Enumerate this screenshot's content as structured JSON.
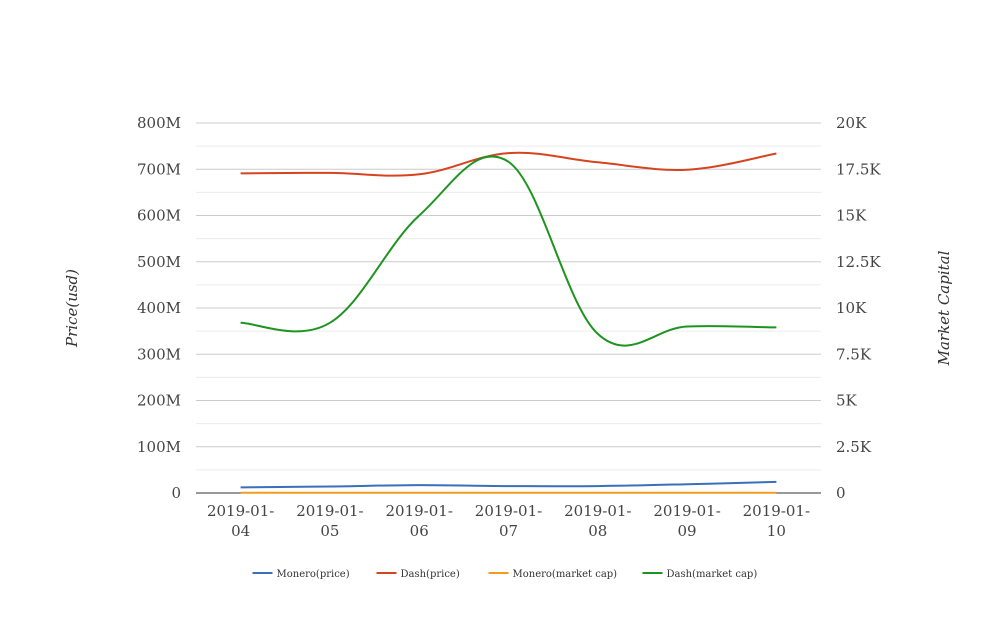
{
  "chart_data": {
    "type": "line",
    "title": "",
    "xlabel": "",
    "ylabel": "Price(usd)",
    "y2label": "Market Capital",
    "categories": [
      "2019-01-04",
      "2019-01-05",
      "2019-01-06",
      "2019-01-07",
      "2019-01-08",
      "2019-01-09",
      "2019-01-10"
    ],
    "category_lines": [
      [
        "2019-01-",
        "04"
      ],
      [
        "2019-01-",
        "05"
      ],
      [
        "2019-01-",
        "06"
      ],
      [
        "2019-01-",
        "07"
      ],
      [
        "2019-01-",
        "08"
      ],
      [
        "2019-01-",
        "09"
      ],
      [
        "2019-01-",
        "10"
      ]
    ],
    "ylim": [
      0,
      800000000
    ],
    "y2lim": [
      0,
      20000
    ],
    "yticks": [
      0,
      100000000,
      200000000,
      300000000,
      400000000,
      500000000,
      600000000,
      700000000,
      800000000
    ],
    "ytick_labels": [
      "0",
      "100M",
      "200M",
      "300M",
      "400M",
      "500M",
      "600M",
      "700M",
      "800M"
    ],
    "y2ticks": [
      0,
      2500,
      5000,
      7500,
      10000,
      12500,
      15000,
      17500,
      20000
    ],
    "y2tick_labels": [
      "0",
      "2.5K",
      "5K",
      "7.5K",
      "10K",
      "12.5K",
      "15K",
      "17.5K",
      "20K"
    ],
    "grid": true,
    "legend_position": "bottom",
    "series": [
      {
        "name": "Monero(price)",
        "axis": "left",
        "color": "#3a6fba",
        "values": [
          12000000,
          14000000,
          17000000,
          15000000,
          15000000,
          19000000,
          24000000
        ]
      },
      {
        "name": "Dash(price)",
        "axis": "left",
        "color": "#d6441f",
        "values": [
          691000000,
          692000000,
          689000000,
          735000000,
          715000000,
          699000000,
          734000000
        ]
      },
      {
        "name": "Monero(market cap)",
        "axis": "right",
        "color": "#f29c1e",
        "values": [
          14,
          15,
          16,
          16,
          16,
          17,
          18
        ]
      },
      {
        "name": "Dash(market cap)",
        "axis": "right",
        "color": "#1e9420",
        "values": [
          9200,
          9200,
          15000,
          17900,
          8600,
          9000,
          8950
        ]
      }
    ]
  }
}
